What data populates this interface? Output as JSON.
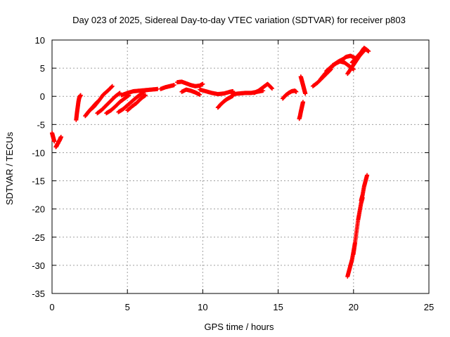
{
  "chart_data": {
    "type": "scatter",
    "title": "Day 023 of 2025, Sidereal Day-to-day VTEC variation (SDTVAR) for receiver p803",
    "xlabel": "GPS time / hours",
    "ylabel": "SDTVAR / TECUs",
    "xlim": [
      0,
      25
    ],
    "ylim": [
      -35,
      10
    ],
    "xticks": [
      0,
      5,
      10,
      15,
      20,
      25
    ],
    "yticks": [
      10,
      5,
      0,
      -5,
      -10,
      -15,
      -20,
      -25,
      -30,
      -35
    ],
    "grid": true,
    "marker": "+",
    "color": "#ff0000",
    "segments": [
      {
        "x": [
          0.0,
          0.05,
          0.1,
          0.15
        ],
        "y": [
          -6.5,
          -7.0,
          -7.5,
          -8.0
        ]
      },
      {
        "x": [
          0.25,
          0.3,
          0.35,
          0.4,
          0.45,
          0.5,
          0.55,
          0.6
        ],
        "y": [
          -9.0,
          -8.8,
          -8.5,
          -8.3,
          -8.0,
          -7.8,
          -7.5,
          -7.2
        ]
      },
      {
        "x": [
          1.6,
          1.65,
          1.7,
          1.75,
          1.8,
          1.85,
          1.9
        ],
        "y": [
          -4.2,
          -3.0,
          -2.0,
          -1.0,
          -0.3,
          0.0,
          0.2
        ]
      },
      {
        "x": [
          2.2,
          2.4,
          2.6,
          2.8,
          3.0
        ],
        "y": [
          -3.5,
          -2.8,
          -2.2,
          -1.6,
          -1.0
        ]
      },
      {
        "x": [
          2.5,
          2.8,
          3.1,
          3.4,
          3.7,
          4.0
        ],
        "y": [
          -2.5,
          -1.8,
          -0.8,
          0.3,
          1.0,
          1.8
        ]
      },
      {
        "x": [
          3.0,
          3.3,
          3.6,
          3.9,
          4.2,
          4.5
        ],
        "y": [
          -3.0,
          -2.4,
          -1.6,
          -0.8,
          0.0,
          0.6
        ]
      },
      {
        "x": [
          3.6,
          3.9,
          4.2,
          4.5,
          4.8,
          5.1
        ],
        "y": [
          -3.0,
          -2.5,
          -1.8,
          -1.0,
          -0.4,
          0.2
        ]
      },
      {
        "x": [
          4.4,
          4.7,
          5.0,
          5.3,
          5.6,
          5.9,
          6.1
        ],
        "y": [
          -2.8,
          -2.3,
          -1.6,
          -0.9,
          -0.2,
          0.4,
          0.8
        ]
      },
      {
        "x": [
          5.0,
          5.3,
          5.6,
          5.9,
          6.2
        ],
        "y": [
          -2.5,
          -1.8,
          -1.2,
          -0.4,
          0.2
        ]
      },
      {
        "x": [
          4.6,
          5.0,
          5.4,
          5.8,
          6.2,
          6.6,
          7.0
        ],
        "y": [
          0.2,
          0.6,
          0.9,
          1.0,
          1.1,
          1.2,
          1.3
        ]
      },
      {
        "x": [
          7.2,
          7.5,
          7.8,
          8.1
        ],
        "y": [
          1.3,
          1.6,
          1.8,
          2.0
        ]
      },
      {
        "x": [
          8.3,
          8.6,
          8.9,
          9.2,
          9.5,
          9.8,
          10.0
        ],
        "y": [
          2.5,
          2.6,
          2.3,
          2.0,
          1.8,
          1.9,
          2.2
        ]
      },
      {
        "x": [
          8.6,
          8.9,
          9.2,
          9.5,
          9.8
        ],
        "y": [
          0.8,
          1.2,
          1.0,
          0.7,
          0.3
        ]
      },
      {
        "x": [
          9.8,
          10.2,
          10.6,
          11.0,
          11.4,
          11.8,
          12.0
        ],
        "y": [
          1.2,
          0.9,
          0.6,
          0.4,
          0.5,
          0.8,
          0.9
        ]
      },
      {
        "x": [
          11.0,
          11.2,
          11.4,
          11.6,
          11.8,
          12.0
        ],
        "y": [
          -2.0,
          -1.4,
          -0.9,
          -0.5,
          -0.2,
          0.1
        ]
      },
      {
        "x": [
          12.0,
          12.4,
          12.8,
          13.2,
          13.6,
          14.0
        ],
        "y": [
          0.4,
          0.5,
          0.6,
          0.6,
          0.8,
          1.0
        ]
      },
      {
        "x": [
          13.4,
          13.7,
          14.0,
          14.3,
          14.6
        ],
        "y": [
          0.6,
          1.0,
          1.6,
          2.2,
          1.4
        ]
      },
      {
        "x": [
          15.3,
          15.5,
          15.7,
          15.9,
          16.1,
          16.2
        ],
        "y": [
          -0.4,
          0.2,
          0.6,
          0.9,
          1.0,
          0.8
        ]
      },
      {
        "x": [
          16.5,
          16.55,
          16.6,
          16.65,
          16.7,
          16.75,
          16.8
        ],
        "y": [
          3.5,
          3.0,
          2.5,
          2.0,
          1.5,
          1.0,
          0.5
        ]
      },
      {
        "x": [
          16.4,
          16.45,
          16.5,
          16.55,
          16.6,
          16.65
        ],
        "y": [
          -4.0,
          -3.5,
          -2.8,
          -2.2,
          -1.6,
          -1.0
        ]
      },
      {
        "x": [
          17.3,
          17.6,
          17.9,
          18.2,
          18.5
        ],
        "y": [
          1.8,
          2.4,
          3.2,
          4.0,
          4.8
        ]
      },
      {
        "x": [
          17.8,
          18.1,
          18.4,
          18.7,
          19.0,
          19.3
        ],
        "y": [
          3.0,
          4.0,
          4.8,
          5.6,
          6.2,
          6.6
        ]
      },
      {
        "x": [
          18.2,
          18.5,
          18.8,
          19.1,
          19.4,
          19.7,
          20.0
        ],
        "y": [
          4.5,
          5.2,
          5.8,
          6.2,
          6.0,
          5.4,
          4.8
        ]
      },
      {
        "x": [
          18.6,
          18.9,
          19.2,
          19.5,
          19.8,
          20.1
        ],
        "y": [
          5.5,
          6.0,
          6.4,
          7.0,
          7.2,
          6.8
        ]
      },
      {
        "x": [
          19.6,
          19.8,
          20.0,
          20.2,
          20.4,
          20.6,
          20.8,
          21.0
        ],
        "y": [
          4.0,
          4.8,
          5.6,
          6.4,
          7.2,
          7.8,
          8.4,
          8.0
        ]
      },
      {
        "x": [
          19.9,
          20.1,
          20.3,
          20.5,
          20.7,
          20.9
        ],
        "y": [
          6.0,
          6.6,
          7.2,
          7.8,
          8.6,
          8.2
        ]
      },
      {
        "x": [
          19.6,
          19.7,
          19.8,
          19.9,
          20.0,
          20.1
        ],
        "y": [
          -32.0,
          -31.0,
          -30.0,
          -29.0,
          -27.5,
          -26.0
        ]
      },
      {
        "x": [
          20.0,
          20.1,
          20.2,
          20.3,
          20.4,
          20.5,
          20.6
        ],
        "y": [
          -28.0,
          -26.0,
          -24.0,
          -22.0,
          -20.5,
          -19.0,
          -18.0
        ]
      },
      {
        "x": [
          20.5,
          20.6,
          20.7,
          20.8,
          20.9
        ],
        "y": [
          -18.5,
          -17.5,
          -16.0,
          -15.0,
          -14.0
        ]
      }
    ]
  }
}
